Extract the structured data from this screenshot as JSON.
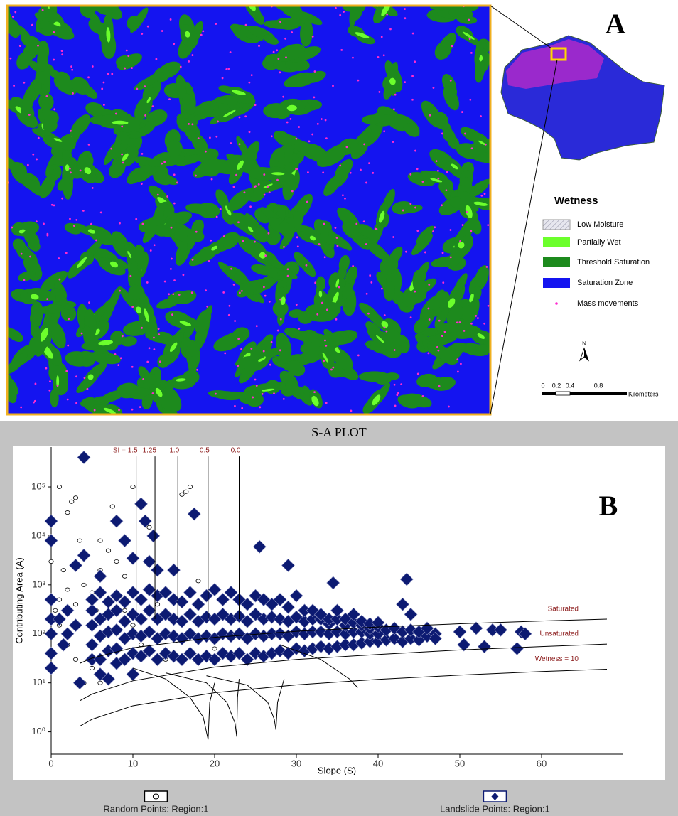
{
  "panel_a": {
    "label": "A",
    "legend": {
      "title": "Wetness",
      "items": [
        "Low Moisture",
        "Partially Wet",
        "Threshold Saturation",
        "Saturation Zone",
        "Mass movements"
      ]
    },
    "north": "N",
    "scale": {
      "ticks": [
        0,
        0.2,
        0.4,
        0.8
      ],
      "unit": "Kilometers"
    }
  },
  "chart_data": {
    "type": "scatter",
    "title": "S-A PLOT",
    "panel_label": "B",
    "x_label": "Slope (S)",
    "y_label": "Contributing Area (A)",
    "xlim": [
      0,
      70
    ],
    "ylim": [
      0.35,
      650000
    ],
    "yscale": "log",
    "xticks": [
      0,
      10,
      20,
      30,
      40,
      50,
      60
    ],
    "yticks": [
      {
        "value": 1,
        "label": "10⁰"
      },
      {
        "value": 10,
        "label": "10¹"
      },
      {
        "value": 100,
        "label": "10²"
      },
      {
        "value": 1000,
        "label": "10³"
      },
      {
        "value": 10000,
        "label": "10⁴"
      },
      {
        "value": 100000,
        "label": "10⁵"
      }
    ],
    "series": [
      {
        "name": "Random Points: Region:1",
        "type": "scatter",
        "marker": "circle",
        "color": "#ffffff",
        "x": [
          0,
          1,
          2,
          2.5,
          3,
          3.5,
          1,
          0.5,
          1.5,
          2,
          3,
          4,
          5,
          5.5,
          6,
          7,
          7.5,
          9,
          10,
          12,
          16,
          16.5,
          17,
          18,
          2,
          3,
          4,
          5,
          6,
          1,
          8,
          9,
          10,
          11,
          12,
          14,
          20,
          22,
          25,
          30,
          6,
          8,
          13,
          15
        ],
        "values": [
          3000,
          100000,
          30000,
          50000,
          60000,
          8000,
          500,
          300,
          2000,
          800,
          400,
          1000,
          700,
          300,
          2000,
          5000,
          40000,
          1500,
          100000,
          15000,
          70000,
          80000,
          100000,
          1200,
          60,
          30,
          10,
          20,
          10,
          150,
          600,
          300,
          150,
          60,
          40,
          30,
          50,
          30,
          100,
          200,
          8000,
          3000,
          400,
          200
        ]
      },
      {
        "name": "Landslide Points: Region:1",
        "type": "scatter",
        "marker": "diamond",
        "color": "#0c1a72",
        "x": [
          4,
          0,
          0,
          0,
          0,
          0,
          0,
          0,
          11,
          11.5,
          12.5,
          17.5,
          9,
          8,
          15,
          13,
          12,
          10,
          25.5,
          29,
          34.5,
          43.5,
          43,
          44,
          50,
          52,
          54,
          55,
          57.5,
          58,
          50.5,
          53,
          57,
          3,
          4,
          6,
          3,
          5,
          6,
          3.5,
          8,
          7,
          10,
          1,
          2,
          1.5,
          2,
          5,
          5,
          5,
          5,
          6,
          6,
          6,
          6,
          7,
          7,
          7,
          7,
          8,
          8,
          8,
          8,
          9,
          9,
          9,
          9,
          10,
          10,
          10,
          10,
          11,
          11,
          11,
          11,
          12,
          12,
          12,
          12,
          13,
          13,
          13,
          13,
          14,
          14,
          14,
          14,
          15,
          15,
          15,
          15,
          16,
          16,
          16,
          16,
          17,
          17,
          17,
          17,
          18,
          18,
          18,
          18,
          19,
          19,
          19,
          19,
          20,
          20,
          20,
          20,
          21,
          21,
          21,
          21,
          22,
          22,
          22,
          22,
          23,
          23,
          23,
          23,
          24,
          24,
          24,
          24,
          25,
          25,
          25,
          25,
          26,
          26,
          26,
          26,
          27,
          27,
          27,
          27,
          28,
          28,
          28,
          28,
          29,
          29,
          29,
          29,
          30,
          30,
          30,
          30,
          31,
          31,
          31,
          31,
          32,
          32,
          32,
          32,
          33,
          33,
          33,
          33,
          34,
          34,
          34,
          34,
          35,
          35,
          35,
          35,
          36,
          36,
          36,
          36,
          37,
          37,
          37,
          37,
          38,
          38,
          38,
          38,
          39,
          39,
          39,
          39,
          40,
          40,
          40,
          40,
          41,
          41,
          42,
          42,
          43,
          43,
          44,
          44,
          45,
          45,
          46,
          46,
          47,
          47
        ],
        "values": [
          400000,
          20000,
          8000,
          500,
          200,
          100,
          40,
          20,
          45000,
          20000,
          10000,
          28000,
          8000,
          20000,
          2000,
          2000,
          3000,
          3500,
          6000,
          2500,
          1100,
          1300,
          400,
          250,
          110,
          130,
          120,
          120,
          110,
          100,
          60,
          55,
          50,
          2500,
          4000,
          1500,
          150,
          30,
          15,
          10,
          25,
          12,
          15,
          200,
          100,
          60,
          300,
          60,
          150,
          300,
          500,
          30,
          90,
          200,
          700,
          45,
          110,
          250,
          450,
          50,
          120,
          300,
          600,
          30,
          80,
          180,
          450,
          40,
          100,
          250,
          700,
          35,
          90,
          200,
          500,
          45,
          110,
          300,
          800,
          30,
          80,
          200,
          600,
          40,
          100,
          250,
          700,
          35,
          90,
          200,
          500,
          30,
          80,
          180,
          450,
          40,
          100,
          250,
          700,
          30,
          80,
          180,
          400,
          35,
          90,
          220,
          600,
          30,
          80,
          200,
          800,
          40,
          100,
          250,
          500,
          35,
          90,
          200,
          700,
          40,
          100,
          230,
          500,
          30,
          80,
          180,
          400,
          40,
          100,
          250,
          600,
          35,
          90,
          200,
          500,
          40,
          100,
          220,
          400,
          45,
          100,
          200,
          500,
          40,
          90,
          180,
          350,
          50,
          110,
          220,
          600,
          45,
          100,
          180,
          300,
          50,
          110,
          200,
          300,
          55,
          110,
          200,
          250,
          50,
          100,
          160,
          200,
          55,
          110,
          200,
          300,
          60,
          100,
          150,
          200,
          60,
          110,
          170,
          250,
          65,
          110,
          150,
          180,
          70,
          100,
          130,
          160,
          70,
          100,
          140,
          170,
          75,
          120,
          80,
          130,
          70,
          110,
          80,
          120,
          75,
          110,
          90,
          130,
          100,
          80
        ]
      },
      {
        "name": "Saturated",
        "type": "line",
        "color": "#000000",
        "x": [
          3.5,
          5,
          10,
          20,
          30,
          40,
          50,
          60,
          68
        ],
        "values": [
          25,
          32,
          52,
          85,
          113,
          138,
          161,
          183,
          200
        ]
      },
      {
        "name": "Unsaturated",
        "type": "line",
        "color": "#000000",
        "x": [
          3.5,
          5,
          10,
          20,
          30,
          40,
          50,
          60,
          68
        ],
        "values": [
          4.3,
          5.9,
          11,
          21,
          30,
          38,
          47,
          55,
          62
        ]
      },
      {
        "name": "Wetness = 10",
        "type": "line",
        "color": "#000000",
        "x": [
          3.5,
          5,
          10,
          20,
          30,
          40,
          50,
          60,
          68
        ],
        "values": [
          1.3,
          1.8,
          3.4,
          6.3,
          9.1,
          11.8,
          14.4,
          17,
          19
        ]
      },
      {
        "name": "SI = 1.5",
        "type": "line",
        "color": "#000000",
        "x": [
          10.4,
          10.4
        ],
        "values": [
          420000,
          300
        ]
      },
      {
        "name": "1.25",
        "type": "line",
        "color": "#000000",
        "x": [
          12.7,
          12.7
        ],
        "values": [
          420000,
          200
        ]
      },
      {
        "name": "1.0",
        "type": "line",
        "color": "#000000",
        "x": [
          15.5,
          15.5
        ],
        "values": [
          420000,
          200
        ]
      },
      {
        "name": "0.5",
        "type": "line",
        "color": "#000000",
        "x": [
          19.2,
          19.2
        ],
        "values": [
          420000,
          200
        ]
      },
      {
        "name": "0.0",
        "type": "line",
        "color": "#000000",
        "x": [
          23,
          23
        ],
        "values": [
          420000,
          200
        ]
      },
      {
        "type": "line",
        "color": "#000000",
        "x": [
          10,
          14,
          17,
          18.6,
          19.2,
          19.4,
          20
        ],
        "values": [
          20,
          12,
          5,
          2,
          0.7,
          4,
          10
        ]
      },
      {
        "type": "line",
        "color": "#000000",
        "x": [
          14,
          19,
          21.5,
          22.5,
          22.7,
          22.8,
          23
        ],
        "values": [
          16,
          10,
          4,
          1.5,
          0.8,
          5,
          12
        ]
      },
      {
        "type": "line",
        "color": "#000000",
        "x": [
          19,
          24,
          26.5,
          27.3,
          27.5,
          27.7,
          28.5
        ],
        "values": [
          14,
          9,
          4,
          1.8,
          1.1,
          4,
          12
        ]
      },
      {
        "type": "line",
        "color": "#000000",
        "x": [
          28,
          33,
          36.5,
          37.5
        ],
        "values": [
          60,
          30,
          12,
          8
        ]
      }
    ]
  }
}
